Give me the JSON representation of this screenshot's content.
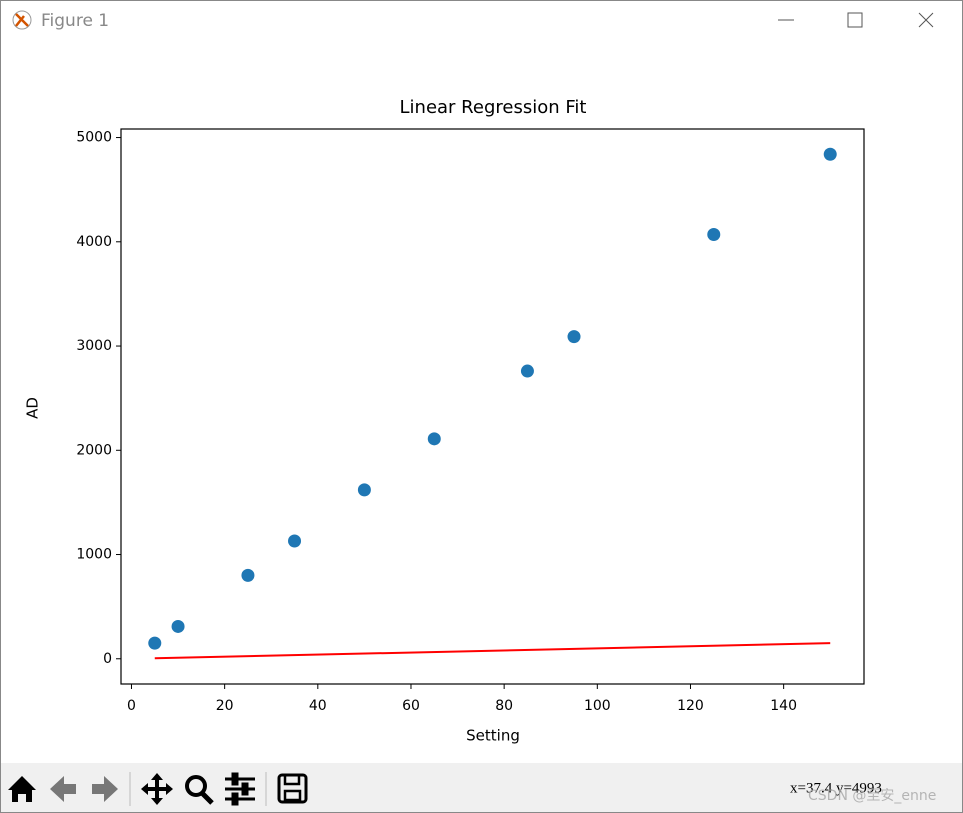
{
  "window": {
    "title": "Figure 1",
    "status": "x=37.4  y=4993",
    "watermark": "CSDN @至安_enne"
  },
  "chart_data": {
    "type": "scatter",
    "title": "Linear Regression Fit",
    "x_label": "Setting",
    "y_label": "AD",
    "x": [
      5,
      10,
      25,
      35,
      50,
      65,
      85,
      95,
      125,
      150
    ],
    "series": [
      {
        "color": "#1f77b4",
        "style": "scatter",
        "values": [
          150,
          310,
          800,
          1130,
          1620,
          2110,
          2760,
          3090,
          4070,
          4840
        ]
      },
      {
        "color": "#ff0000",
        "style": "line",
        "x": [
          5,
          150
        ],
        "values": [
          5,
          150
        ]
      }
    ],
    "xlim": [
      -2.25,
      157.25
    ],
    "ylim": [
      -242,
      5082
    ],
    "xticks": [
      0,
      20,
      40,
      60,
      80,
      100,
      120,
      140
    ],
    "yticks": [
      0,
      1000,
      2000,
      3000,
      4000,
      5000
    ]
  }
}
